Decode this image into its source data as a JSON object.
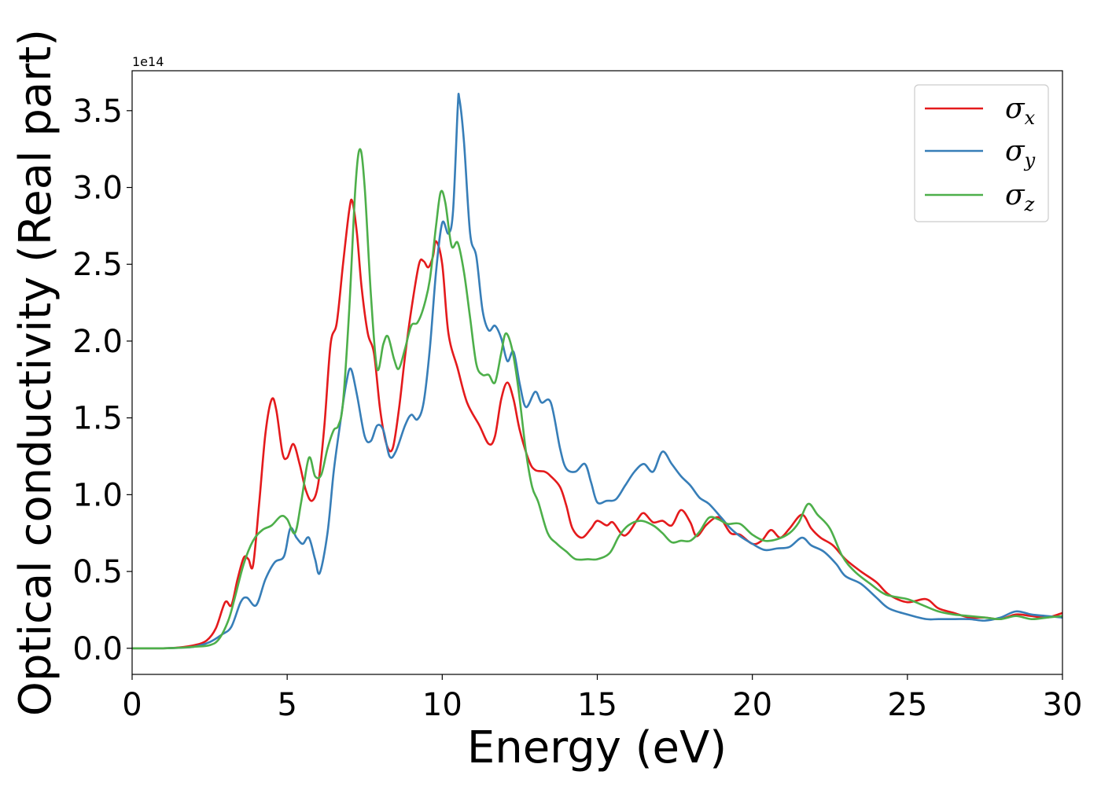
{
  "chart_data": {
    "type": "line",
    "title": "",
    "xlabel": "Energy (eV)",
    "ylabel": "Optical conductivity (Real part)",
    "y_offset_text": "1e14",
    "xlim": [
      0,
      30
    ],
    "ylim": [
      -0.17,
      3.76
    ],
    "xticks": [
      0,
      5,
      10,
      15,
      20,
      25,
      30
    ],
    "xtick_labels": [
      "0",
      "5",
      "10",
      "15",
      "20",
      "25",
      "30"
    ],
    "yticks": [
      0.0,
      0.5,
      1.0,
      1.5,
      2.0,
      2.5,
      3.0,
      3.5
    ],
    "ytick_labels": [
      "0.0",
      "0.5",
      "1.0",
      "1.5",
      "2.0",
      "2.5",
      "3.0",
      "3.5"
    ],
    "grid": false,
    "legend_position": "top-right",
    "series": [
      {
        "name": "σ_x",
        "label_base": "σ",
        "label_sub": "x",
        "color": "#e41a1c",
        "points": [
          [
            0,
            0
          ],
          [
            1,
            0
          ],
          [
            1.5,
            0.005
          ],
          [
            2,
            0.02
          ],
          [
            2.4,
            0.05
          ],
          [
            2.7,
            0.13
          ],
          [
            3.0,
            0.3
          ],
          [
            3.2,
            0.28
          ],
          [
            3.4,
            0.45
          ],
          [
            3.6,
            0.59
          ],
          [
            3.75,
            0.58
          ],
          [
            3.9,
            0.54
          ],
          [
            4.1,
            0.95
          ],
          [
            4.3,
            1.4
          ],
          [
            4.5,
            1.62
          ],
          [
            4.65,
            1.55
          ],
          [
            4.85,
            1.27
          ],
          [
            5.0,
            1.24
          ],
          [
            5.2,
            1.33
          ],
          [
            5.4,
            1.2
          ],
          [
            5.6,
            1.03
          ],
          [
            5.8,
            0.96
          ],
          [
            6.0,
            1.07
          ],
          [
            6.2,
            1.45
          ],
          [
            6.4,
            1.98
          ],
          [
            6.6,
            2.12
          ],
          [
            6.8,
            2.5
          ],
          [
            7.0,
            2.85
          ],
          [
            7.1,
            2.91
          ],
          [
            7.25,
            2.7
          ],
          [
            7.4,
            2.35
          ],
          [
            7.6,
            2.05
          ],
          [
            7.8,
            1.92
          ],
          [
            8.0,
            1.55
          ],
          [
            8.2,
            1.33
          ],
          [
            8.4,
            1.3
          ],
          [
            8.6,
            1.55
          ],
          [
            8.8,
            1.9
          ],
          [
            9.0,
            2.2
          ],
          [
            9.25,
            2.5
          ],
          [
            9.4,
            2.52
          ],
          [
            9.55,
            2.48
          ],
          [
            9.7,
            2.55
          ],
          [
            9.8,
            2.65
          ],
          [
            10.0,
            2.5
          ],
          [
            10.2,
            2.05
          ],
          [
            10.5,
            1.82
          ],
          [
            10.8,
            1.6
          ],
          [
            11.2,
            1.45
          ],
          [
            11.5,
            1.33
          ],
          [
            11.7,
            1.38
          ],
          [
            11.9,
            1.62
          ],
          [
            12.1,
            1.73
          ],
          [
            12.3,
            1.62
          ],
          [
            12.5,
            1.42
          ],
          [
            12.8,
            1.22
          ],
          [
            13.0,
            1.16
          ],
          [
            13.3,
            1.15
          ],
          [
            13.5,
            1.12
          ],
          [
            13.8,
            1.05
          ],
          [
            14.0,
            0.93
          ],
          [
            14.2,
            0.78
          ],
          [
            14.5,
            0.72
          ],
          [
            14.8,
            0.78
          ],
          [
            15.0,
            0.83
          ],
          [
            15.3,
            0.8
          ],
          [
            15.5,
            0.82
          ],
          [
            15.8,
            0.74
          ],
          [
            16.0,
            0.75
          ],
          [
            16.3,
            0.84
          ],
          [
            16.5,
            0.88
          ],
          [
            16.8,
            0.82
          ],
          [
            17.1,
            0.83
          ],
          [
            17.4,
            0.8
          ],
          [
            17.7,
            0.9
          ],
          [
            18.0,
            0.82
          ],
          [
            18.2,
            0.73
          ],
          [
            18.5,
            0.8
          ],
          [
            18.8,
            0.85
          ],
          [
            19.0,
            0.84
          ],
          [
            19.3,
            0.75
          ],
          [
            19.6,
            0.74
          ],
          [
            20.0,
            0.68
          ],
          [
            20.3,
            0.7
          ],
          [
            20.6,
            0.77
          ],
          [
            20.9,
            0.72
          ],
          [
            21.2,
            0.78
          ],
          [
            21.6,
            0.87
          ],
          [
            21.9,
            0.78
          ],
          [
            22.2,
            0.72
          ],
          [
            22.6,
            0.67
          ],
          [
            23.0,
            0.58
          ],
          [
            23.5,
            0.5
          ],
          [
            24.0,
            0.43
          ],
          [
            24.4,
            0.35
          ],
          [
            25.0,
            0.3
          ],
          [
            25.6,
            0.32
          ],
          [
            26.0,
            0.26
          ],
          [
            26.5,
            0.23
          ],
          [
            27.0,
            0.2
          ],
          [
            27.5,
            0.2
          ],
          [
            28.0,
            0.19
          ],
          [
            28.5,
            0.22
          ],
          [
            29.0,
            0.21
          ],
          [
            29.5,
            0.2
          ],
          [
            30.0,
            0.23
          ]
        ]
      },
      {
        "name": "σ_y",
        "label_base": "σ",
        "label_sub": "y",
        "color": "#377eb8",
        "points": [
          [
            0,
            0
          ],
          [
            1,
            0
          ],
          [
            1.5,
            0.003
          ],
          [
            2,
            0.01
          ],
          [
            2.5,
            0.04
          ],
          [
            2.9,
            0.09
          ],
          [
            3.2,
            0.14
          ],
          [
            3.5,
            0.3
          ],
          [
            3.7,
            0.33
          ],
          [
            4.0,
            0.28
          ],
          [
            4.3,
            0.45
          ],
          [
            4.6,
            0.56
          ],
          [
            4.9,
            0.6
          ],
          [
            5.1,
            0.78
          ],
          [
            5.3,
            0.72
          ],
          [
            5.5,
            0.68
          ],
          [
            5.7,
            0.72
          ],
          [
            5.9,
            0.58
          ],
          [
            6.05,
            0.49
          ],
          [
            6.3,
            0.75
          ],
          [
            6.5,
            1.15
          ],
          [
            6.7,
            1.45
          ],
          [
            6.9,
            1.72
          ],
          [
            7.05,
            1.82
          ],
          [
            7.25,
            1.65
          ],
          [
            7.5,
            1.38
          ],
          [
            7.7,
            1.35
          ],
          [
            7.9,
            1.45
          ],
          [
            8.1,
            1.42
          ],
          [
            8.3,
            1.25
          ],
          [
            8.5,
            1.28
          ],
          [
            8.8,
            1.45
          ],
          [
            9.0,
            1.52
          ],
          [
            9.2,
            1.49
          ],
          [
            9.4,
            1.6
          ],
          [
            9.6,
            1.95
          ],
          [
            9.8,
            2.45
          ],
          [
            10.0,
            2.77
          ],
          [
            10.2,
            2.7
          ],
          [
            10.35,
            2.85
          ],
          [
            10.5,
            3.52
          ],
          [
            10.55,
            3.58
          ],
          [
            10.7,
            3.3
          ],
          [
            10.9,
            2.7
          ],
          [
            11.1,
            2.55
          ],
          [
            11.3,
            2.2
          ],
          [
            11.5,
            2.07
          ],
          [
            11.7,
            2.1
          ],
          [
            11.9,
            2.02
          ],
          [
            12.1,
            1.87
          ],
          [
            12.3,
            1.93
          ],
          [
            12.5,
            1.72
          ],
          [
            12.7,
            1.57
          ],
          [
            13.0,
            1.67
          ],
          [
            13.2,
            1.6
          ],
          [
            13.5,
            1.6
          ],
          [
            13.8,
            1.3
          ],
          [
            14.0,
            1.17
          ],
          [
            14.3,
            1.15
          ],
          [
            14.6,
            1.2
          ],
          [
            14.8,
            1.08
          ],
          [
            15.0,
            0.95
          ],
          [
            15.3,
            0.96
          ],
          [
            15.6,
            0.97
          ],
          [
            15.9,
            1.06
          ],
          [
            16.2,
            1.15
          ],
          [
            16.5,
            1.2
          ],
          [
            16.8,
            1.15
          ],
          [
            17.1,
            1.28
          ],
          [
            17.4,
            1.2
          ],
          [
            17.7,
            1.12
          ],
          [
            18.0,
            1.06
          ],
          [
            18.3,
            0.98
          ],
          [
            18.6,
            0.94
          ],
          [
            19.0,
            0.85
          ],
          [
            19.3,
            0.78
          ],
          [
            19.6,
            0.73
          ],
          [
            20.0,
            0.68
          ],
          [
            20.4,
            0.64
          ],
          [
            20.8,
            0.65
          ],
          [
            21.2,
            0.66
          ],
          [
            21.6,
            0.72
          ],
          [
            21.9,
            0.67
          ],
          [
            22.3,
            0.63
          ],
          [
            22.7,
            0.55
          ],
          [
            23.0,
            0.47
          ],
          [
            23.5,
            0.42
          ],
          [
            24.0,
            0.33
          ],
          [
            24.4,
            0.26
          ],
          [
            25.0,
            0.22
          ],
          [
            25.6,
            0.19
          ],
          [
            26.0,
            0.19
          ],
          [
            26.5,
            0.19
          ],
          [
            27.0,
            0.19
          ],
          [
            27.5,
            0.18
          ],
          [
            28.0,
            0.2
          ],
          [
            28.5,
            0.24
          ],
          [
            29.0,
            0.22
          ],
          [
            29.5,
            0.21
          ],
          [
            30.0,
            0.2
          ]
        ]
      },
      {
        "name": "σ_z",
        "label_base": "σ",
        "label_sub": "z",
        "color": "#4daf4a",
        "points": [
          [
            0,
            0
          ],
          [
            1,
            0
          ],
          [
            1.5,
            0.003
          ],
          [
            2,
            0.01
          ],
          [
            2.5,
            0.02
          ],
          [
            2.8,
            0.06
          ],
          [
            3.1,
            0.18
          ],
          [
            3.3,
            0.32
          ],
          [
            3.6,
            0.55
          ],
          [
            3.9,
            0.7
          ],
          [
            4.2,
            0.77
          ],
          [
            4.5,
            0.8
          ],
          [
            4.8,
            0.86
          ],
          [
            5.0,
            0.84
          ],
          [
            5.25,
            0.75
          ],
          [
            5.45,
            0.95
          ],
          [
            5.7,
            1.24
          ],
          [
            5.9,
            1.12
          ],
          [
            6.1,
            1.13
          ],
          [
            6.3,
            1.3
          ],
          [
            6.5,
            1.42
          ],
          [
            6.65,
            1.45
          ],
          [
            6.8,
            1.6
          ],
          [
            7.0,
            2.2
          ],
          [
            7.2,
            3.0
          ],
          [
            7.35,
            3.25
          ],
          [
            7.5,
            3.0
          ],
          [
            7.7,
            2.3
          ],
          [
            7.9,
            1.82
          ],
          [
            8.1,
            1.98
          ],
          [
            8.25,
            2.03
          ],
          [
            8.45,
            1.88
          ],
          [
            8.6,
            1.82
          ],
          [
            8.8,
            1.95
          ],
          [
            9.0,
            2.1
          ],
          [
            9.2,
            2.12
          ],
          [
            9.4,
            2.22
          ],
          [
            9.6,
            2.4
          ],
          [
            9.8,
            2.75
          ],
          [
            9.95,
            2.97
          ],
          [
            10.1,
            2.9
          ],
          [
            10.3,
            2.62
          ],
          [
            10.5,
            2.64
          ],
          [
            10.7,
            2.45
          ],
          [
            10.9,
            2.15
          ],
          [
            11.1,
            1.85
          ],
          [
            11.3,
            1.78
          ],
          [
            11.5,
            1.78
          ],
          [
            11.7,
            1.73
          ],
          [
            11.9,
            1.92
          ],
          [
            12.05,
            2.05
          ],
          [
            12.25,
            1.95
          ],
          [
            12.45,
            1.7
          ],
          [
            12.7,
            1.28
          ],
          [
            12.9,
            1.05
          ],
          [
            13.1,
            0.95
          ],
          [
            13.4,
            0.75
          ],
          [
            13.7,
            0.68
          ],
          [
            14.0,
            0.63
          ],
          [
            14.3,
            0.58
          ],
          [
            14.7,
            0.58
          ],
          [
            15.0,
            0.58
          ],
          [
            15.4,
            0.62
          ],
          [
            15.7,
            0.73
          ],
          [
            16.0,
            0.8
          ],
          [
            16.4,
            0.83
          ],
          [
            16.8,
            0.8
          ],
          [
            17.1,
            0.75
          ],
          [
            17.4,
            0.69
          ],
          [
            17.7,
            0.7
          ],
          [
            18.0,
            0.7
          ],
          [
            18.3,
            0.76
          ],
          [
            18.6,
            0.85
          ],
          [
            18.9,
            0.84
          ],
          [
            19.2,
            0.81
          ],
          [
            19.6,
            0.81
          ],
          [
            20.0,
            0.74
          ],
          [
            20.4,
            0.7
          ],
          [
            20.8,
            0.71
          ],
          [
            21.2,
            0.75
          ],
          [
            21.5,
            0.82
          ],
          [
            21.8,
            0.94
          ],
          [
            22.1,
            0.87
          ],
          [
            22.5,
            0.78
          ],
          [
            22.9,
            0.6
          ],
          [
            23.3,
            0.5
          ],
          [
            23.8,
            0.42
          ],
          [
            24.3,
            0.35
          ],
          [
            25.0,
            0.32
          ],
          [
            25.5,
            0.28
          ],
          [
            26.0,
            0.24
          ],
          [
            26.5,
            0.22
          ],
          [
            27.0,
            0.21
          ],
          [
            27.5,
            0.2
          ],
          [
            28.0,
            0.19
          ],
          [
            28.5,
            0.21
          ],
          [
            29.0,
            0.19
          ],
          [
            29.5,
            0.2
          ],
          [
            30.0,
            0.21
          ]
        ]
      }
    ]
  }
}
